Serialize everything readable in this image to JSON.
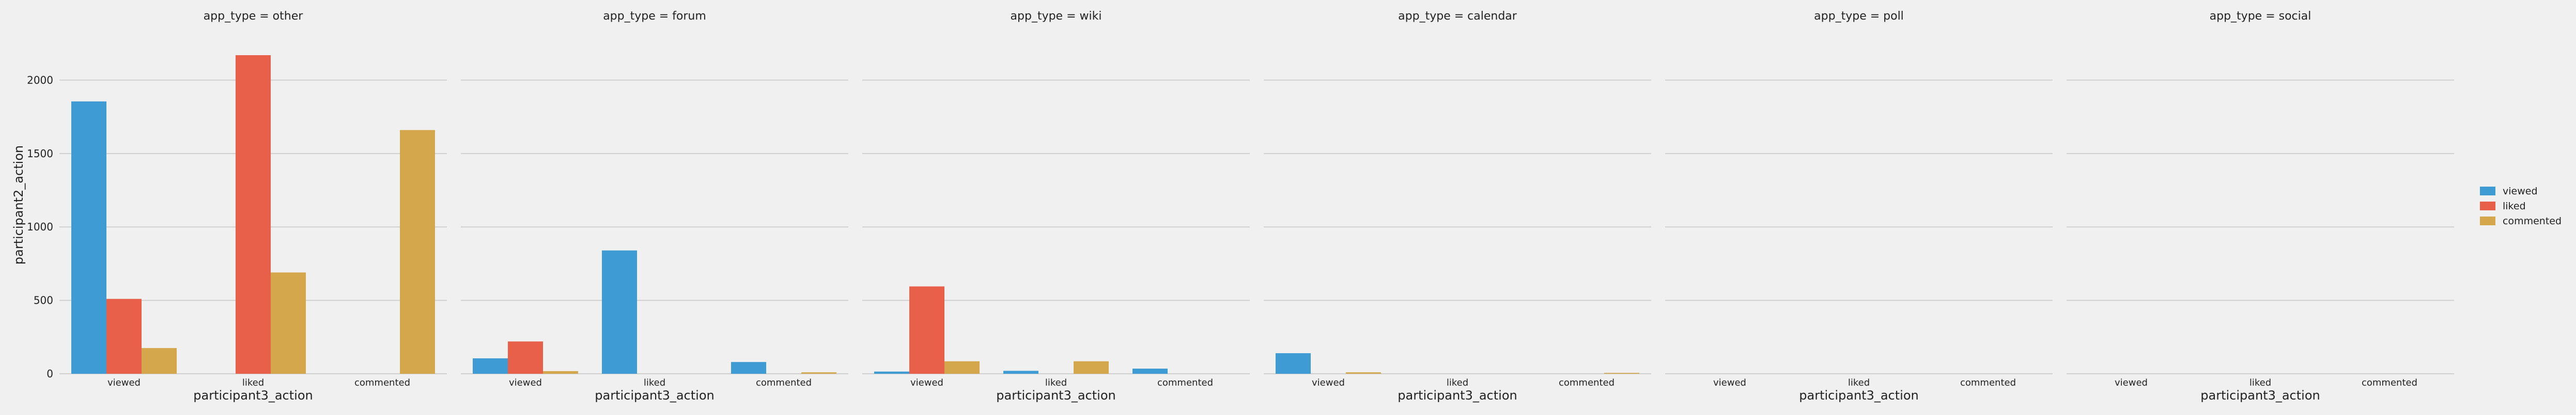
{
  "chart_data": {
    "type": "bar",
    "layout": "facet-grid",
    "facet_variable": "app_type",
    "facets": [
      {
        "title": "app_type = other",
        "series_values": {
          "viewed": [
            1855,
            0,
            0
          ],
          "liked": [
            510,
            2170,
            0
          ],
          "commented": [
            175,
            690,
            1660
          ]
        }
      },
      {
        "title": "app_type = forum",
        "series_values": {
          "viewed": [
            105,
            840,
            80
          ],
          "liked": [
            220,
            0,
            0
          ],
          "commented": [
            18,
            0,
            10
          ]
        }
      },
      {
        "title": "app_type = wiki",
        "series_values": {
          "viewed": [
            15,
            20,
            35
          ],
          "liked": [
            595,
            0,
            0
          ],
          "commented": [
            85,
            85,
            0
          ]
        }
      },
      {
        "title": "app_type = calendar",
        "series_values": {
          "viewed": [
            140,
            0,
            0
          ],
          "liked": [
            0,
            0,
            0
          ],
          "commented": [
            10,
            0,
            6
          ]
        }
      },
      {
        "title": "app_type = poll",
        "series_values": {
          "viewed": [
            0,
            0,
            0
          ],
          "liked": [
            0,
            0,
            0
          ],
          "commented": [
            0,
            0,
            0
          ]
        }
      },
      {
        "title": "app_type = social",
        "series_values": {
          "viewed": [
            0,
            0,
            0
          ],
          "liked": [
            0,
            0,
            0
          ],
          "commented": [
            0,
            0,
            0
          ]
        }
      }
    ],
    "categories": [
      "viewed",
      "liked",
      "commented"
    ],
    "series": [
      {
        "name": "viewed",
        "color": "#3e9bd3"
      },
      {
        "name": "liked",
        "color": "#e8604a"
      },
      {
        "name": "commented",
        "color": "#d4a74d"
      }
    ],
    "xlabel": "participant3_action",
    "ylabel": "participant2_action",
    "ylim": [
      0,
      2300
    ],
    "yticks": [
      0,
      500,
      1000,
      1500,
      2000
    ],
    "grid": true,
    "legend_position": "right"
  }
}
